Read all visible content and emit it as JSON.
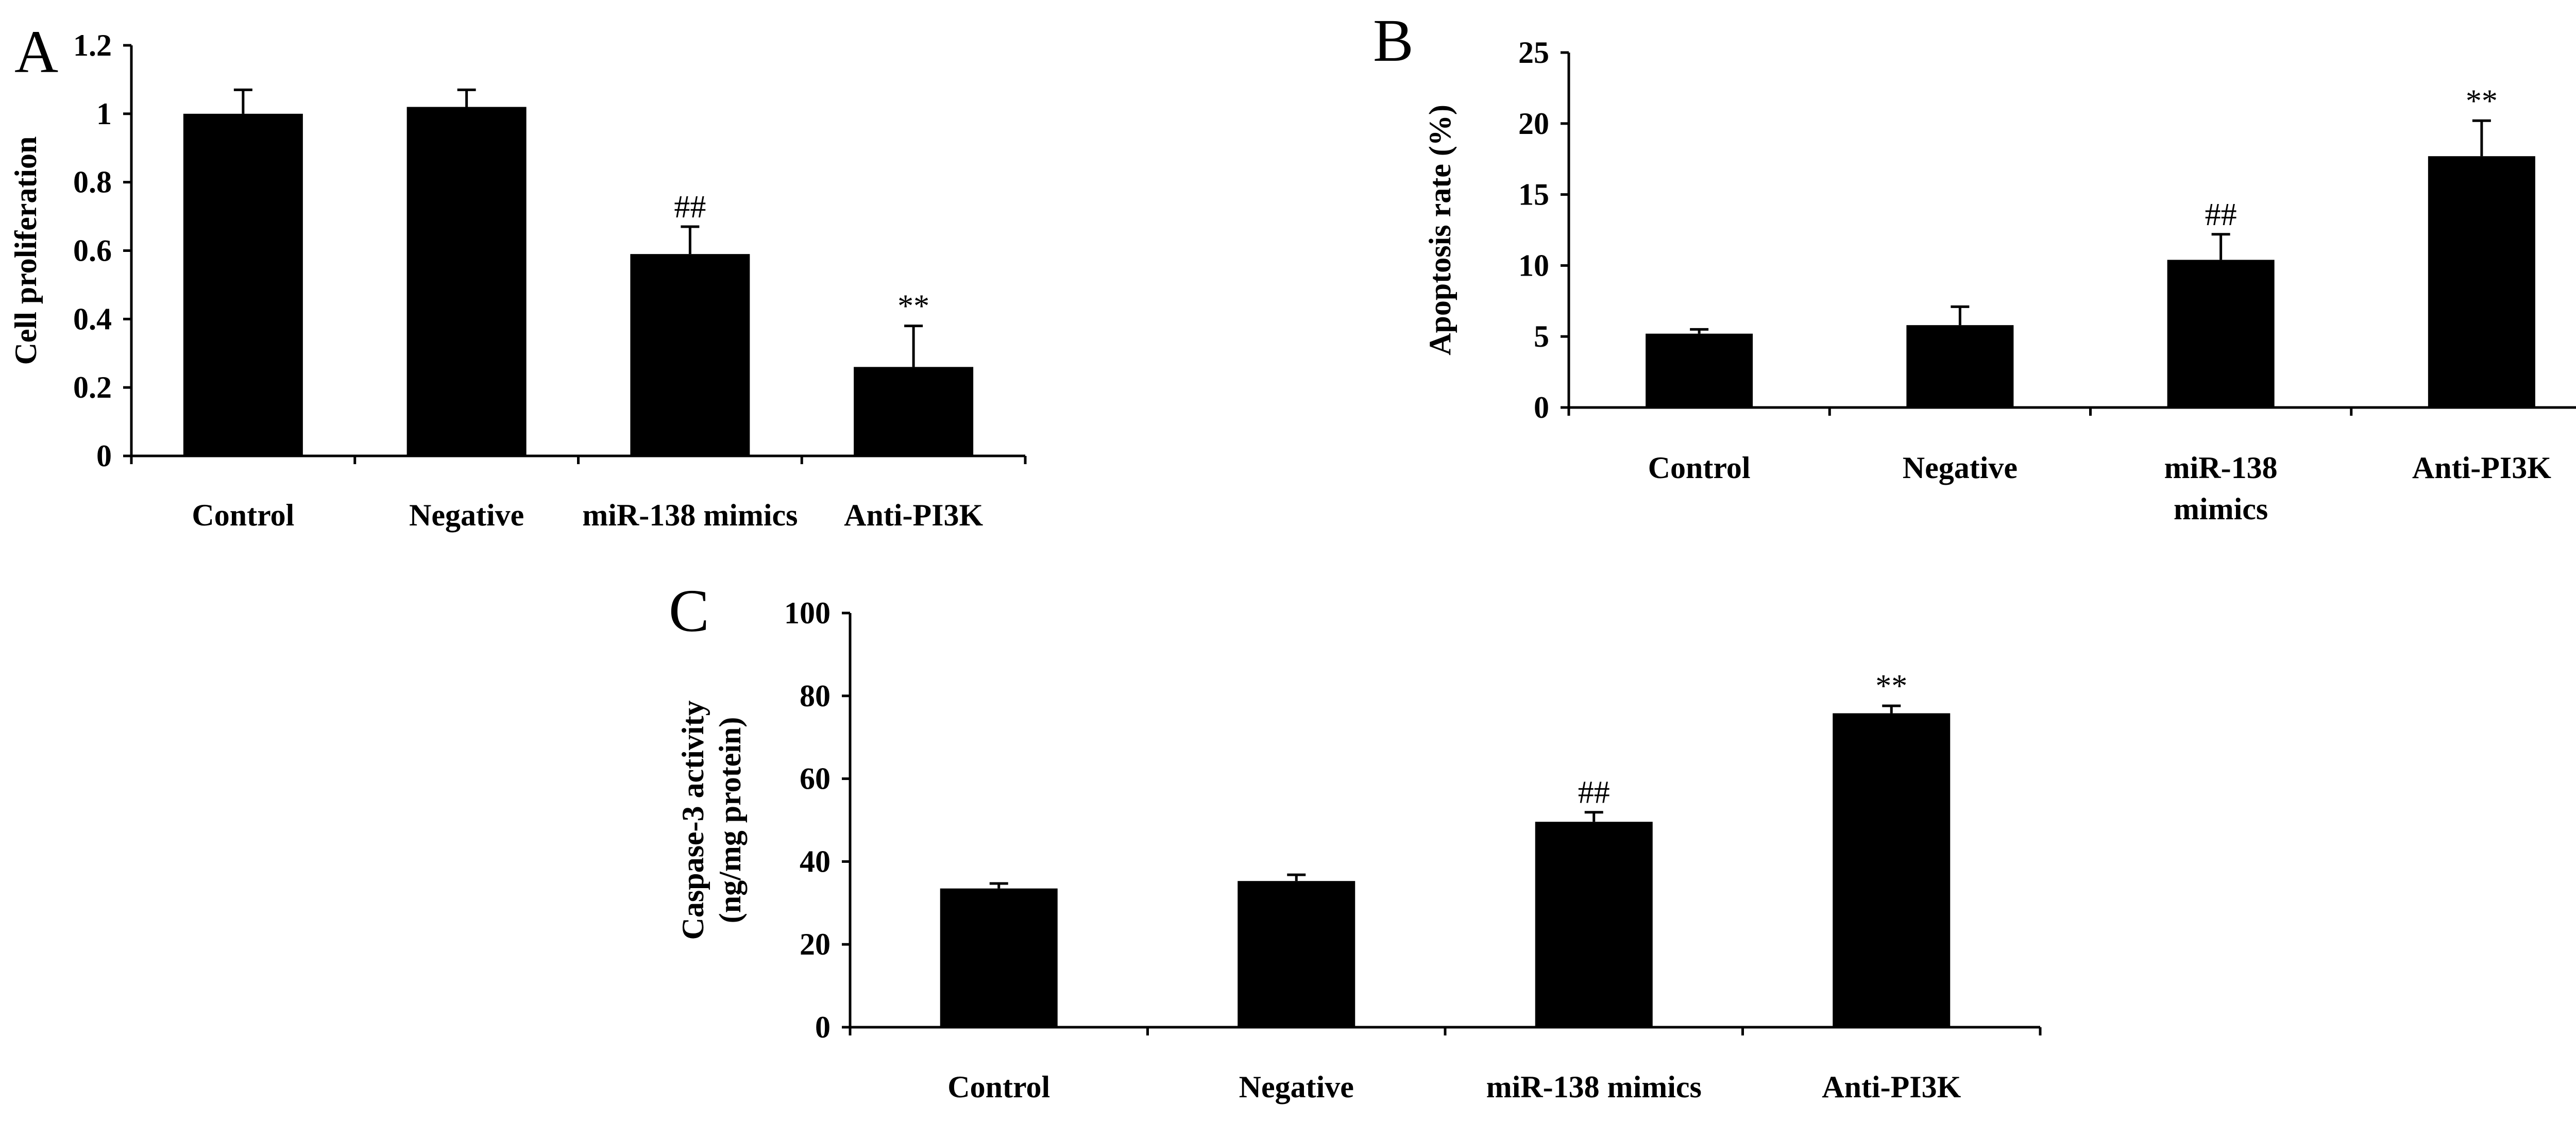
{
  "chart_data": [
    {
      "panel": "A",
      "type": "bar",
      "categories": [
        [
          "Control"
        ],
        [
          "Negative"
        ],
        [
          "miR-138 mimics"
        ],
        [
          "Anti-PI3K"
        ]
      ],
      "values": [
        1.0,
        1.02,
        0.59,
        0.26
      ],
      "errors": [
        0.07,
        0.05,
        0.08,
        0.12
      ],
      "annotations": [
        "",
        "",
        "##",
        "**"
      ],
      "ylabel": [
        "Cell proliferation"
      ],
      "xlabel": "",
      "ylim": [
        0,
        1.2
      ],
      "yticks": [
        0,
        0.2,
        0.4,
        0.6,
        0.8,
        1,
        1.2
      ],
      "ytick_labels": [
        "0",
        "0.2",
        "0.4",
        "0.6",
        "0.8",
        "1",
        "1.2"
      ],
      "bar_color": "#000000",
      "grid": false
    },
    {
      "panel": "B",
      "type": "bar",
      "categories": [
        [
          "Control"
        ],
        [
          "Negative"
        ],
        [
          "miR-138",
          "mimics"
        ],
        [
          "Anti-PI3K"
        ]
      ],
      "values": [
        5.2,
        5.8,
        10.4,
        17.7
      ],
      "errors": [
        0.3,
        1.3,
        1.8,
        2.5
      ],
      "annotations": [
        "",
        "",
        "##",
        "**"
      ],
      "ylabel": [
        "Apoptosis rate (%)"
      ],
      "xlabel": "",
      "ylim": [
        0,
        25
      ],
      "yticks": [
        0,
        5,
        10,
        15,
        20,
        25
      ],
      "ytick_labels": [
        "0",
        "5",
        "10",
        "15",
        "20",
        "25"
      ],
      "bar_color": "#000000",
      "grid": false
    },
    {
      "panel": "C",
      "type": "bar",
      "categories": [
        [
          "Control"
        ],
        [
          "Negative"
        ],
        [
          "miR-138 mimics"
        ],
        [
          "Anti-PI3K"
        ]
      ],
      "values": [
        33.5,
        35.3,
        49.6,
        75.8
      ],
      "errors": [
        1.2,
        1.5,
        2.3,
        1.8
      ],
      "annotations": [
        "",
        "",
        "##",
        "**"
      ],
      "ylabel": [
        "Caspase-3 activity",
        "(ng/mg protein)"
      ],
      "xlabel": "",
      "ylim": [
        0,
        100
      ],
      "yticks": [
        0,
        20,
        40,
        60,
        80,
        100
      ],
      "ytick_labels": [
        "0",
        "20",
        "40",
        "60",
        "80",
        "100"
      ],
      "bar_color": "#000000",
      "grid": false
    }
  ]
}
